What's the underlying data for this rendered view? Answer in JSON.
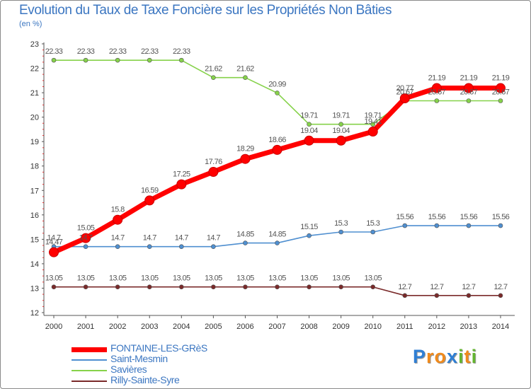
{
  "chart_data": {
    "type": "line",
    "title": "Evolution du Taux de Taxe Foncière sur les Propriétés Non Bâties",
    "subtitle": "(en %)",
    "xlabel": "",
    "ylabel": "",
    "x": [
      "2000",
      "2001",
      "2002",
      "2003",
      "2004",
      "2005",
      "2006",
      "2007",
      "2008",
      "2009",
      "2010",
      "2011",
      "2012",
      "2013",
      "2014"
    ],
    "ylim": [
      12,
      23
    ],
    "yticks": [
      "12",
      "13",
      "14",
      "15",
      "16",
      "17",
      "18",
      "19",
      "20",
      "21",
      "22",
      "23"
    ],
    "grid": false,
    "legend_position": "bottom-left",
    "series": [
      {
        "name": "FONTAINE-LES-GRèS",
        "color": "#ff0000",
        "values": [
          14.47,
          15.05,
          15.8,
          16.59,
          17.25,
          17.76,
          18.29,
          18.66,
          19.04,
          19.04,
          19.41,
          20.77,
          21.19,
          21.19,
          21.19
        ],
        "labels": [
          "14.47",
          "15.05",
          "15.8",
          "16.59",
          "17.25",
          "17.76",
          "18.29",
          "18.66",
          "19.04",
          "19.04",
          "19.41",
          "20.77",
          "21.19",
          "21.19",
          "21.19"
        ]
      },
      {
        "name": "Saint-Mesmin",
        "color": "#4f8fd0",
        "values": [
          14.7,
          14.7,
          14.7,
          14.7,
          14.7,
          14.7,
          14.85,
          14.85,
          15.15,
          15.3,
          15.3,
          15.56,
          15.56,
          15.56,
          15.56
        ],
        "labels": [
          "14.7",
          "14.7",
          "14.7",
          "14.7",
          "14.7",
          "14.7",
          "14.85",
          "14.85",
          "15.15",
          "15.3",
          "15.3",
          "15.56",
          "15.56",
          "15.56",
          "15.56"
        ]
      },
      {
        "name": "Savières",
        "color": "#86d24a",
        "values": [
          22.33,
          22.33,
          22.33,
          22.33,
          22.33,
          21.62,
          21.62,
          20.99,
          19.71,
          19.71,
          19.71,
          20.67,
          20.67,
          20.67,
          20.67
        ],
        "labels": [
          "22.33",
          "22.33",
          "22.33",
          "22.33",
          "22.33",
          "21.62",
          "21.62",
          "20.99",
          "19.71",
          "19.71",
          "19.71",
          "20.67",
          "20.67",
          "20.67",
          "20.67"
        ]
      },
      {
        "name": "Rilly-Sainte-Syre",
        "color": "#7a2a2a",
        "values": [
          13.05,
          13.05,
          13.05,
          13.05,
          13.05,
          13.05,
          13.05,
          13.05,
          13.05,
          13.05,
          13.05,
          12.7,
          12.7,
          12.7,
          12.7
        ],
        "labels": [
          "13.05",
          "13.05",
          "13.05",
          "13.05",
          "13.05",
          "13.05",
          "13.05",
          "13.05",
          "13.05",
          "13.05",
          "13.05",
          "12.7",
          "12.7",
          "12.7",
          "12.7"
        ]
      }
    ]
  },
  "brand": {
    "letters": [
      "P",
      "r",
      "o",
      "x",
      "i",
      "t",
      "i"
    ],
    "colors": [
      "#2f7fd4",
      "#f08a1c",
      "#f08a1c",
      "#2f7fd4",
      "#63b52f",
      "#f08a1c",
      "#63b52f"
    ]
  }
}
